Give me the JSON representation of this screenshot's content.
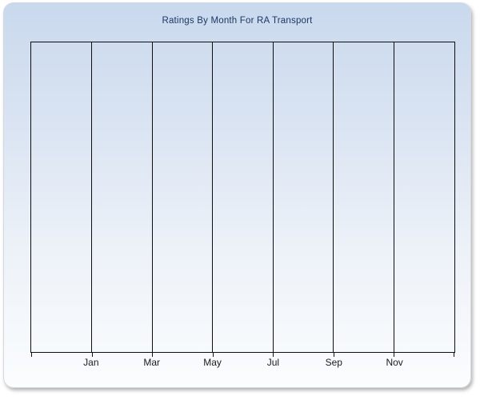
{
  "chart_data": {
    "type": "bar",
    "title": "Ratings By Month For RA Transport",
    "categories": [
      "Jan",
      "Mar",
      "May",
      "Jul",
      "Sep",
      "Nov"
    ],
    "values": [],
    "series": [],
    "xlabel": "",
    "ylabel": "",
    "x_divisions": 7,
    "grid": "vertical gridlines only; no horizontal gridlines; no y-axis tick labels",
    "legend": "none",
    "plot_content": "empty plot area - no data rendered"
  },
  "colors": {
    "widget_background_top": "#c9d9ed",
    "widget_background_bottom": "#fbfdfe",
    "widget_border": "#d4d9e0",
    "title_text": "#1b3864",
    "axis_and_gridline": "#0f0f0f",
    "tick_label_text": "#1a1a1a",
    "page_background": "#ffffff"
  }
}
